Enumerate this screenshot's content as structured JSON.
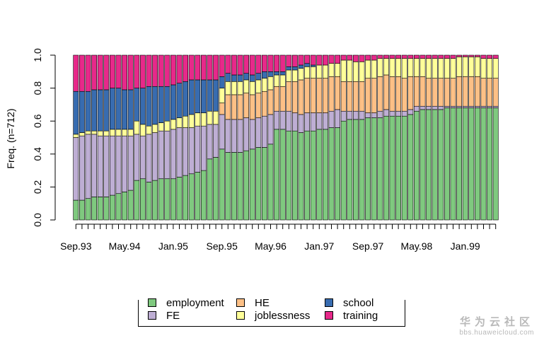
{
  "chart_data": {
    "type": "bar",
    "stacked": true,
    "ylabel": "Freq. (n=712)",
    "xlabel": "",
    "ylim": [
      0,
      1
    ],
    "yticks": [
      "0.0",
      "0.2",
      "0.4",
      "0.6",
      "0.8",
      "1.0"
    ],
    "n_bars": 70,
    "x_tick_labels": [
      {
        "bar": 0,
        "label": "Sep.93"
      },
      {
        "bar": 8,
        "label": "May.94"
      },
      {
        "bar": 16,
        "label": "Jan.95"
      },
      {
        "bar": 24,
        "label": "Sep.95"
      },
      {
        "bar": 32,
        "label": "May.96"
      },
      {
        "bar": 40,
        "label": "Jan.97"
      },
      {
        "bar": 48,
        "label": "Sep.97"
      },
      {
        "bar": 56,
        "label": "May.98"
      },
      {
        "bar": 64,
        "label": "Jan.99"
      }
    ],
    "series": [
      {
        "name": "employment",
        "color": "#7fc97f",
        "values": [
          0.12,
          0.12,
          0.13,
          0.14,
          0.14,
          0.14,
          0.15,
          0.16,
          0.17,
          0.18,
          0.24,
          0.25,
          0.23,
          0.24,
          0.25,
          0.25,
          0.25,
          0.26,
          0.27,
          0.28,
          0.29,
          0.3,
          0.37,
          0.38,
          0.43,
          0.41,
          0.41,
          0.41,
          0.42,
          0.43,
          0.44,
          0.44,
          0.46,
          0.55,
          0.55,
          0.54,
          0.54,
          0.53,
          0.54,
          0.54,
          0.55,
          0.55,
          0.56,
          0.56,
          0.6,
          0.61,
          0.61,
          0.61,
          0.62,
          0.62,
          0.62,
          0.63,
          0.63,
          0.63,
          0.63,
          0.64,
          0.66,
          0.67,
          0.67,
          0.67,
          0.67,
          0.68,
          0.68,
          0.68,
          0.68,
          0.68,
          0.68,
          0.68,
          0.68,
          0.68
        ]
      },
      {
        "name": "FE",
        "color": "#beaed4",
        "values": [
          0.38,
          0.39,
          0.39,
          0.38,
          0.37,
          0.37,
          0.36,
          0.35,
          0.34,
          0.33,
          0.28,
          0.26,
          0.29,
          0.29,
          0.29,
          0.29,
          0.3,
          0.3,
          0.29,
          0.28,
          0.28,
          0.27,
          0.21,
          0.2,
          0.21,
          0.2,
          0.2,
          0.2,
          0.2,
          0.18,
          0.18,
          0.19,
          0.18,
          0.11,
          0.11,
          0.12,
          0.11,
          0.11,
          0.11,
          0.11,
          0.1,
          0.1,
          0.1,
          0.11,
          0.06,
          0.05,
          0.05,
          0.05,
          0.03,
          0.03,
          0.04,
          0.04,
          0.03,
          0.03,
          0.03,
          0.03,
          0.03,
          0.02,
          0.02,
          0.02,
          0.02,
          0.01,
          0.01,
          0.01,
          0.01,
          0.01,
          0.01,
          0.01,
          0.01,
          0.01
        ]
      },
      {
        "name": "HE",
        "color": "#fdc086",
        "values": [
          0.0,
          0.0,
          0.0,
          0.0,
          0.0,
          0.0,
          0.0,
          0.0,
          0.0,
          0.0,
          0.0,
          0.0,
          0.0,
          0.0,
          0.0,
          0.0,
          0.0,
          0.0,
          0.0,
          0.0,
          0.0,
          0.0,
          0.0,
          0.0,
          0.07,
          0.15,
          0.15,
          0.15,
          0.15,
          0.15,
          0.15,
          0.15,
          0.15,
          0.15,
          0.15,
          0.18,
          0.19,
          0.21,
          0.21,
          0.21,
          0.21,
          0.21,
          0.21,
          0.2,
          0.18,
          0.18,
          0.18,
          0.18,
          0.21,
          0.21,
          0.21,
          0.21,
          0.21,
          0.21,
          0.2,
          0.2,
          0.18,
          0.18,
          0.17,
          0.17,
          0.17,
          0.17,
          0.17,
          0.18,
          0.18,
          0.18,
          0.18,
          0.17,
          0.17,
          0.17
        ]
      },
      {
        "name": "joblessness",
        "color": "#ffff99",
        "values": [
          0.02,
          0.02,
          0.02,
          0.02,
          0.03,
          0.03,
          0.04,
          0.04,
          0.04,
          0.04,
          0.08,
          0.07,
          0.05,
          0.05,
          0.05,
          0.06,
          0.06,
          0.06,
          0.07,
          0.08,
          0.08,
          0.08,
          0.08,
          0.08,
          0.09,
          0.08,
          0.08,
          0.08,
          0.08,
          0.08,
          0.08,
          0.08,
          0.08,
          0.07,
          0.07,
          0.07,
          0.07,
          0.07,
          0.07,
          0.07,
          0.08,
          0.08,
          0.08,
          0.08,
          0.13,
          0.13,
          0.12,
          0.12,
          0.11,
          0.11,
          0.11,
          0.1,
          0.11,
          0.11,
          0.12,
          0.11,
          0.11,
          0.11,
          0.12,
          0.12,
          0.12,
          0.12,
          0.12,
          0.12,
          0.12,
          0.12,
          0.12,
          0.12,
          0.12,
          0.12
        ]
      },
      {
        "name": "school",
        "color": "#386cb0",
        "values": [
          0.26,
          0.25,
          0.24,
          0.25,
          0.25,
          0.25,
          0.25,
          0.25,
          0.24,
          0.24,
          0.2,
          0.22,
          0.24,
          0.23,
          0.22,
          0.21,
          0.21,
          0.21,
          0.21,
          0.21,
          0.2,
          0.2,
          0.19,
          0.19,
          0.07,
          0.05,
          0.04,
          0.04,
          0.04,
          0.04,
          0.04,
          0.04,
          0.03,
          0.02,
          0.02,
          0.02,
          0.02,
          0.02,
          0.02,
          0.01,
          0.0,
          0.0,
          0.0,
          0.0,
          0.0,
          0.0,
          0.0,
          0.0,
          0.0,
          0.0,
          0.0,
          0.0,
          0.0,
          0.0,
          0.0,
          0.0,
          0.0,
          0.0,
          0.0,
          0.0,
          0.0,
          0.0,
          0.0,
          0.0,
          0.0,
          0.0,
          0.0,
          0.0,
          0.0,
          0.0
        ]
      },
      {
        "name": "training",
        "color": "#e7298a",
        "values": [
          0.22,
          0.22,
          0.22,
          0.21,
          0.21,
          0.21,
          0.2,
          0.2,
          0.21,
          0.21,
          0.2,
          0.2,
          0.19,
          0.19,
          0.19,
          0.19,
          0.18,
          0.17,
          0.16,
          0.15,
          0.15,
          0.15,
          0.15,
          0.15,
          0.13,
          0.11,
          0.12,
          0.12,
          0.11,
          0.12,
          0.11,
          0.1,
          0.1,
          0.1,
          0.1,
          0.07,
          0.07,
          0.06,
          0.05,
          0.06,
          0.06,
          0.06,
          0.05,
          0.05,
          0.03,
          0.03,
          0.04,
          0.04,
          0.03,
          0.03,
          0.02,
          0.02,
          0.02,
          0.02,
          0.02,
          0.02,
          0.02,
          0.02,
          0.02,
          0.02,
          0.02,
          0.02,
          0.02,
          0.01,
          0.01,
          0.01,
          0.01,
          0.02,
          0.02,
          0.02
        ]
      }
    ],
    "legend": {
      "position": "bottom",
      "items": [
        {
          "label": "employment",
          "color": "#7fc97f"
        },
        {
          "label": "FE",
          "color": "#beaed4"
        },
        {
          "label": "HE",
          "color": "#fdc086"
        },
        {
          "label": "joblessness",
          "color": "#ffff99"
        },
        {
          "label": "school",
          "color": "#386cb0"
        },
        {
          "label": "training",
          "color": "#e7298a"
        }
      ]
    }
  },
  "watermark": {
    "title": "华为云社区",
    "url": "bbs.huaweicloud.com"
  }
}
